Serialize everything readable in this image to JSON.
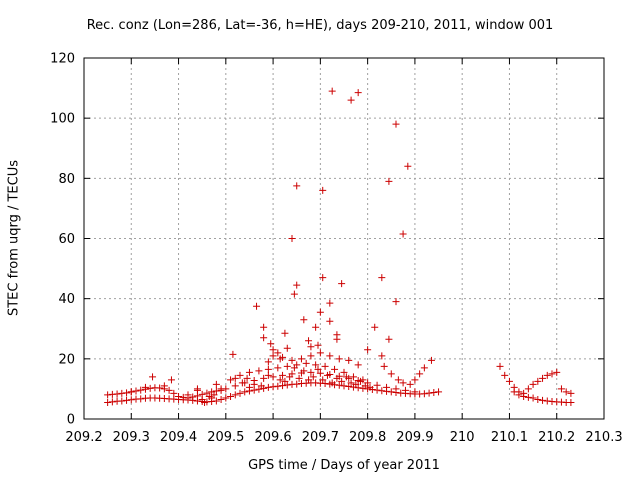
{
  "chart_data": {
    "type": "scatter",
    "title": "Rec. conz (Lon=286, Lat=-36, h=HE), days 209-210, 2011, window 001",
    "xlabel": "GPS time / Days of year 2011",
    "ylabel": "STEC from uqrg / TECUs",
    "xlim": [
      209.2,
      210.3
    ],
    "ylim": [
      0,
      120
    ],
    "xticks": [
      209.2,
      209.3,
      209.4,
      209.5,
      209.6,
      209.7,
      209.8,
      209.9,
      210.0,
      210.1,
      210.2,
      210.3
    ],
    "xtick_labels": [
      "209.2",
      "209.3",
      "209.4",
      "209.5",
      "209.6",
      "209.7",
      "209.8",
      "209.9",
      "210",
      "210.1",
      "210.2",
      "210.3"
    ],
    "yticks": [
      0,
      20,
      40,
      60,
      80,
      100,
      120
    ],
    "ytick_labels": [
      "0",
      "20",
      "40",
      "60",
      "80",
      "100",
      "120"
    ],
    "grid": true,
    "marker": "+",
    "color": "#cc0000",
    "series": [
      {
        "name": "STEC",
        "points": [
          [
            209.25,
            5.5
          ],
          [
            209.26,
            5.7
          ],
          [
            209.27,
            5.9
          ],
          [
            209.28,
            6.0
          ],
          [
            209.29,
            6.2
          ],
          [
            209.3,
            6.4
          ],
          [
            209.31,
            6.6
          ],
          [
            209.32,
            6.7
          ],
          [
            209.33,
            6.9
          ],
          [
            209.34,
            7.0
          ],
          [
            209.35,
            7.0
          ],
          [
            209.36,
            6.9
          ],
          [
            209.37,
            6.8
          ],
          [
            209.38,
            6.7
          ],
          [
            209.39,
            6.6
          ],
          [
            209.4,
            6.5
          ],
          [
            209.41,
            6.4
          ],
          [
            209.42,
            6.3
          ],
          [
            209.43,
            6.2
          ],
          [
            209.44,
            6.0
          ],
          [
            209.45,
            5.8
          ],
          [
            209.46,
            5.7
          ],
          [
            209.47,
            5.8
          ],
          [
            209.48,
            6.0
          ],
          [
            209.49,
            6.5
          ],
          [
            209.25,
            8.0
          ],
          [
            209.26,
            8.2
          ],
          [
            209.27,
            8.3
          ],
          [
            209.28,
            8.5
          ],
          [
            209.29,
            8.7
          ],
          [
            209.3,
            9.0
          ],
          [
            209.31,
            9.3
          ],
          [
            209.32,
            9.6
          ],
          [
            209.33,
            9.9
          ],
          [
            209.34,
            10.2
          ],
          [
            209.35,
            10.4
          ],
          [
            209.36,
            10.3
          ],
          [
            209.37,
            10.0
          ],
          [
            209.38,
            9.5
          ],
          [
            209.39,
            8.5
          ],
          [
            209.4,
            7.5
          ],
          [
            209.41,
            7.2
          ],
          [
            209.42,
            7.0
          ],
          [
            209.43,
            7.3
          ],
          [
            209.44,
            7.7
          ],
          [
            209.45,
            8.2
          ],
          [
            209.46,
            8.6
          ],
          [
            209.47,
            9.0
          ],
          [
            209.48,
            9.3
          ],
          [
            209.49,
            9.5
          ],
          [
            209.3,
            9.0
          ],
          [
            209.33,
            10.5
          ],
          [
            209.345,
            14.0
          ],
          [
            209.37,
            11.0
          ],
          [
            209.385,
            13.0
          ],
          [
            209.42,
            8.0
          ],
          [
            209.44,
            9.5
          ],
          [
            209.45,
            6.5
          ],
          [
            209.47,
            7.0
          ],
          [
            209.475,
            8.0
          ],
          [
            209.48,
            11.5
          ],
          [
            209.49,
            10.0
          ],
          [
            209.44,
            10.0
          ],
          [
            209.455,
            5.5
          ],
          [
            209.465,
            7.5
          ],
          [
            209.5,
            7.0
          ],
          [
            209.51,
            7.5
          ],
          [
            209.52,
            8.0
          ],
          [
            209.53,
            8.5
          ],
          [
            209.54,
            9.0
          ],
          [
            209.55,
            9.3
          ],
          [
            209.56,
            9.6
          ],
          [
            209.57,
            9.9
          ],
          [
            209.58,
            10.2
          ],
          [
            209.59,
            10.5
          ],
          [
            209.6,
            10.7
          ],
          [
            209.61,
            10.9
          ],
          [
            209.62,
            11.1
          ],
          [
            209.63,
            11.3
          ],
          [
            209.64,
            11.5
          ],
          [
            209.65,
            11.6
          ],
          [
            209.66,
            11.8
          ],
          [
            209.67,
            11.9
          ],
          [
            209.68,
            12.0
          ],
          [
            209.69,
            12.0
          ],
          [
            209.7,
            11.9
          ],
          [
            209.71,
            11.8
          ],
          [
            209.72,
            11.6
          ],
          [
            209.73,
            11.4
          ],
          [
            209.74,
            11.2
          ],
          [
            209.75,
            11.0
          ],
          [
            209.76,
            10.8
          ],
          [
            209.77,
            10.6
          ],
          [
            209.78,
            10.4
          ],
          [
            209.79,
            10.2
          ],
          [
            209.8,
            10.0
          ],
          [
            209.81,
            9.8
          ],
          [
            209.82,
            9.6
          ],
          [
            209.83,
            9.4
          ],
          [
            209.84,
            9.2
          ],
          [
            209.85,
            9.0
          ],
          [
            209.86,
            8.8
          ],
          [
            209.87,
            8.6
          ],
          [
            209.88,
            8.5
          ],
          [
            209.89,
            8.4
          ],
          [
            209.9,
            8.3
          ],
          [
            209.91,
            8.3
          ],
          [
            209.92,
            8.4
          ],
          [
            209.93,
            8.6
          ],
          [
            209.94,
            8.8
          ],
          [
            209.95,
            9.0
          ],
          [
            209.5,
            10.0
          ],
          [
            209.52,
            11.0
          ],
          [
            209.54,
            12.0
          ],
          [
            209.56,
            12.8
          ],
          [
            209.58,
            13.5
          ],
          [
            209.6,
            14.0
          ],
          [
            209.62,
            14.5
          ],
          [
            209.64,
            15.0
          ],
          [
            209.66,
            15.3
          ],
          [
            209.68,
            15.5
          ],
          [
            209.7,
            15.2
          ],
          [
            209.72,
            14.8
          ],
          [
            209.74,
            14.2
          ],
          [
            209.76,
            13.5
          ],
          [
            209.78,
            12.8
          ],
          [
            209.8,
            12.0
          ],
          [
            209.82,
            11.2
          ],
          [
            209.84,
            10.5
          ],
          [
            209.86,
            10.0
          ],
          [
            209.88,
            9.5
          ],
          [
            209.9,
            9.0
          ],
          [
            209.51,
            13.0
          ],
          [
            209.53,
            14.5
          ],
          [
            209.55,
            15.5
          ],
          [
            209.57,
            16.0
          ],
          [
            209.59,
            16.5
          ],
          [
            209.61,
            17.0
          ],
          [
            209.63,
            17.5
          ],
          [
            209.65,
            18.0
          ],
          [
            209.67,
            18.5
          ],
          [
            209.69,
            18.0
          ],
          [
            209.71,
            17.5
          ],
          [
            209.73,
            16.5
          ],
          [
            209.75,
            15.5
          ],
          [
            209.77,
            14.0
          ],
          [
            209.79,
            13.0
          ],
          [
            209.59,
            19.0
          ],
          [
            209.6,
            21.0
          ],
          [
            209.61,
            22.0
          ],
          [
            209.62,
            20.5
          ],
          [
            209.64,
            19.5
          ],
          [
            209.66,
            20.0
          ],
          [
            209.68,
            21.0
          ],
          [
            209.7,
            22.0
          ],
          [
            209.72,
            21.0
          ],
          [
            209.74,
            20.0
          ],
          [
            209.76,
            19.5
          ],
          [
            209.78,
            18.0
          ],
          [
            209.515,
            21.5
          ],
          [
            209.52,
            13.5
          ],
          [
            209.535,
            12.0
          ],
          [
            209.545,
            13.5
          ],
          [
            209.55,
            10.5
          ],
          [
            209.56,
            11.5
          ],
          [
            209.575,
            11.0
          ],
          [
            209.59,
            14.5
          ],
          [
            209.615,
            13.0
          ],
          [
            209.625,
            12.5
          ],
          [
            209.635,
            14.0
          ],
          [
            209.645,
            17.0
          ],
          [
            209.655,
            13.5
          ],
          [
            209.665,
            16.0
          ],
          [
            209.675,
            13.0
          ],
          [
            209.685,
            14.0
          ],
          [
            209.695,
            16.5
          ],
          [
            209.705,
            13.0
          ],
          [
            209.715,
            14.5
          ],
          [
            209.725,
            12.0
          ],
          [
            209.735,
            13.5
          ],
          [
            209.745,
            12.5
          ],
          [
            209.755,
            14.0
          ],
          [
            209.765,
            12.0
          ],
          [
            209.775,
            11.5
          ],
          [
            209.785,
            12.5
          ],
          [
            209.795,
            11.0
          ],
          [
            209.805,
            10.5
          ],
          [
            209.565,
            37.5
          ],
          [
            209.58,
            30.5
          ],
          [
            209.58,
            27.0
          ],
          [
            209.595,
            25.0
          ],
          [
            209.6,
            23.0
          ],
          [
            209.615,
            20.0
          ],
          [
            209.625,
            28.5
          ],
          [
            209.63,
            23.5
          ],
          [
            209.645,
            41.5
          ],
          [
            209.64,
            60.0
          ],
          [
            209.65,
            44.5
          ],
          [
            209.65,
            77.5
          ],
          [
            209.665,
            33.0
          ],
          [
            209.675,
            26.0
          ],
          [
            209.68,
            24.0
          ],
          [
            209.69,
            30.5
          ],
          [
            209.695,
            24.5
          ],
          [
            209.7,
            35.5
          ],
          [
            209.705,
            47.0
          ],
          [
            209.705,
            76.0
          ],
          [
            209.72,
            38.5
          ],
          [
            209.72,
            32.5
          ],
          [
            209.735,
            28.0
          ],
          [
            209.735,
            26.5
          ],
          [
            209.745,
            45.0
          ],
          [
            209.725,
            109.0
          ],
          [
            209.765,
            106.0
          ],
          [
            209.78,
            108.5
          ],
          [
            209.8,
            23.0
          ],
          [
            209.815,
            30.5
          ],
          [
            209.83,
            21.0
          ],
          [
            209.83,
            47.0
          ],
          [
            209.845,
            79.0
          ],
          [
            209.845,
            26.5
          ],
          [
            209.86,
            98.0
          ],
          [
            209.86,
            39.0
          ],
          [
            209.875,
            61.5
          ],
          [
            209.885,
            84.0
          ],
          [
            209.835,
            17.5
          ],
          [
            209.85,
            15.0
          ],
          [
            209.865,
            13.0
          ],
          [
            209.875,
            12.0
          ],
          [
            209.89,
            11.5
          ],
          [
            209.9,
            13.0
          ],
          [
            209.91,
            15.0
          ],
          [
            209.92,
            17.0
          ],
          [
            209.935,
            19.5
          ],
          [
            210.08,
            17.5
          ],
          [
            210.09,
            14.5
          ],
          [
            210.1,
            12.5
          ],
          [
            210.11,
            10.5
          ],
          [
            210.12,
            9.0
          ],
          [
            210.13,
            8.5
          ],
          [
            210.14,
            10.0
          ],
          [
            210.15,
            11.5
          ],
          [
            210.16,
            12.5
          ],
          [
            210.17,
            13.5
          ],
          [
            210.18,
            14.5
          ],
          [
            210.19,
            15.0
          ],
          [
            210.2,
            15.5
          ],
          [
            210.21,
            10.0
          ],
          [
            210.22,
            9.0
          ],
          [
            210.23,
            8.5
          ],
          [
            210.11,
            9.0
          ],
          [
            210.12,
            8.0
          ],
          [
            210.13,
            7.5
          ],
          [
            210.14,
            7.2
          ],
          [
            210.15,
            7.0
          ],
          [
            210.16,
            6.5
          ],
          [
            210.17,
            6.2
          ],
          [
            210.18,
            6.0
          ],
          [
            210.19,
            5.8
          ],
          [
            210.2,
            5.7
          ],
          [
            210.21,
            5.6
          ],
          [
            210.22,
            5.5
          ],
          [
            210.23,
            5.5
          ]
        ]
      }
    ]
  }
}
